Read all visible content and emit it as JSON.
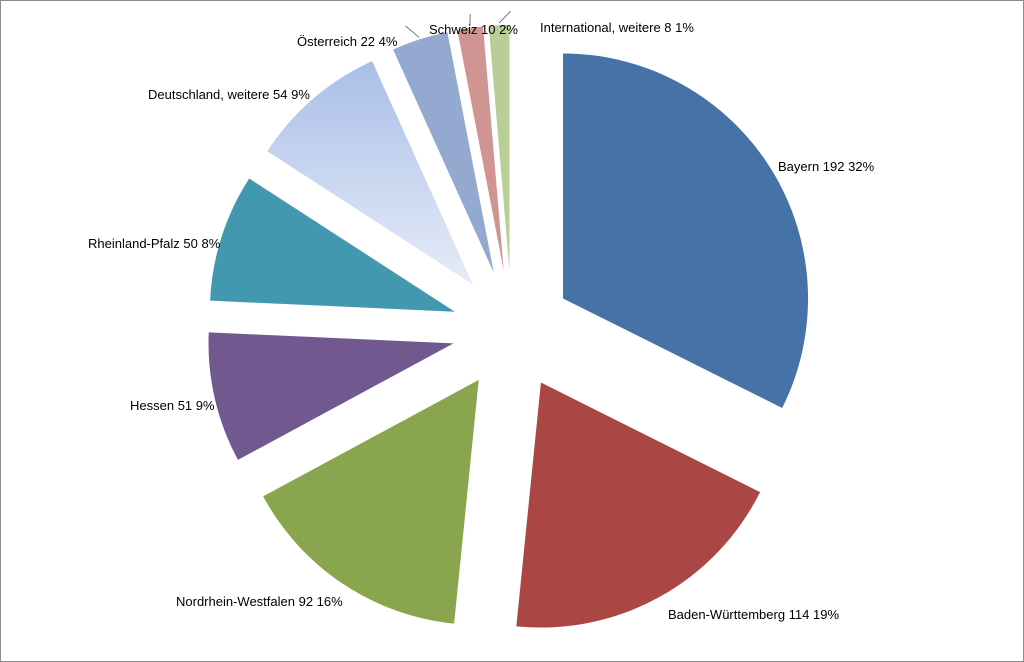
{
  "chart_data": {
    "type": "pie",
    "title": "",
    "exploded": true,
    "slices": [
      {
        "name": "Bayern",
        "value": 192,
        "percent": "32%",
        "color": "#4572A7"
      },
      {
        "name": "Baden-Württemberg",
        "value": 114,
        "percent": "19%",
        "color": "#AA4643"
      },
      {
        "name": "Nordrhein-Westfalen",
        "value": 92,
        "percent": "16%",
        "color": "#89A54E"
      },
      {
        "name": "Hessen",
        "value": 51,
        "percent": "9%",
        "color": "#71588F"
      },
      {
        "name": "Rheinland-Pfalz",
        "value": 50,
        "percent": "8%",
        "color": "#4198AF"
      },
      {
        "name": "Deutschland, weitere",
        "value": 54,
        "percent": "9%",
        "color": "#A9BFE8",
        "color_light": "#E6ECF7",
        "gradient": true
      },
      {
        "name": "Österreich",
        "value": 22,
        "percent": "4%",
        "color": "#93A9CF"
      },
      {
        "name": "Schweiz",
        "value": 10,
        "percent": "2%",
        "color": "#D09593"
      },
      {
        "name": "International, weitere",
        "value": 8,
        "percent": "1%",
        "color": "#B9CD96"
      }
    ],
    "labels": [
      "Bayern 192 32%",
      "Baden-Württemberg 114 19%",
      "Nordrhein-Westfalen 92 16%",
      "Hessen 51 9%",
      "Rheinland-Pfalz 50 8%",
      "Deutschland, weitere 54 9%",
      "Österreich  22 4%",
      "Schweiz 10 2%",
      "International, weitere 8 1%"
    ]
  }
}
